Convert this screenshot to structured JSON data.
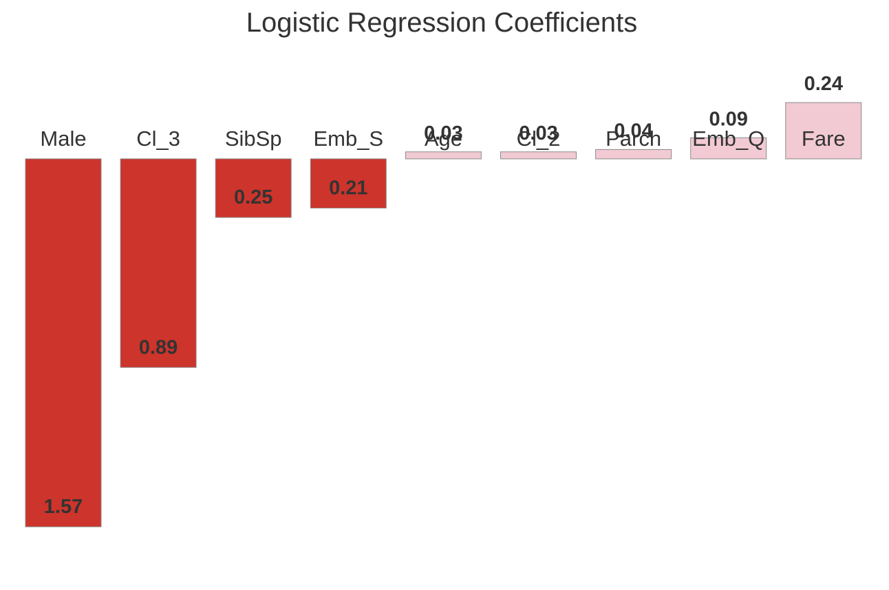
{
  "chart_data": {
    "type": "bar",
    "title": "Logistic Regression Coefficients",
    "xlabel": "",
    "ylabel": "",
    "categories": [
      "Male",
      "Cl_3",
      "SibSp",
      "Emb_S",
      "Age",
      "Cl_2",
      "Parch",
      "Emb_Q",
      "Fare"
    ],
    "values": [
      -1.57,
      -0.89,
      -0.25,
      -0.21,
      0.03,
      0.03,
      0.04,
      0.09,
      0.24
    ],
    "value_labels": [
      "1.57",
      "0.89",
      "0.25",
      "0.21",
      "0.03",
      "0.03",
      "0.04",
      "0.09",
      "0.24"
    ],
    "ylim": [
      -1.65,
      0.35
    ],
    "grid": false,
    "legend": "none",
    "colors": {
      "negative": "#cd342b",
      "positive": "#f2cad3",
      "edge": "#8a8a8a",
      "text": "#333333"
    }
  }
}
